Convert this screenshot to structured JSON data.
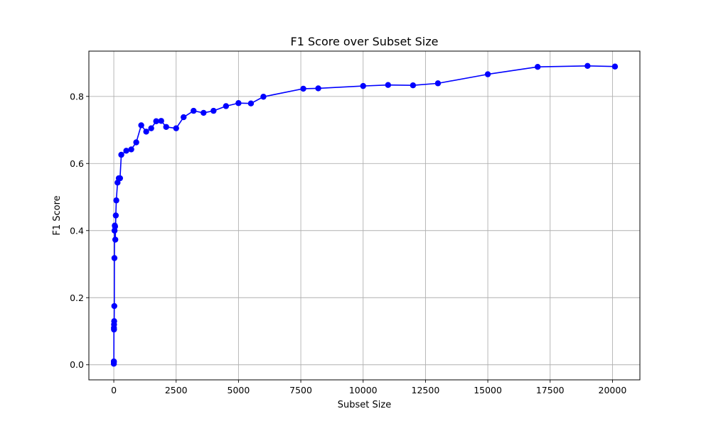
{
  "chart_data": {
    "type": "line",
    "title": "F1 Score over Subset Size",
    "xlabel": "Subset Size",
    "ylabel": "F1 Score",
    "xlim": [
      -1000,
      21100
    ],
    "ylim": [
      -0.045,
      0.935
    ],
    "xticks": [
      0,
      2500,
      5000,
      7500,
      10000,
      12500,
      15000,
      17500,
      20000
    ],
    "yticks": [
      0.0,
      0.2,
      0.4,
      0.6,
      0.8
    ],
    "xtick_labels": [
      "0",
      "2500",
      "5000",
      "7500",
      "10000",
      "12500",
      "15000",
      "17500",
      "20000"
    ],
    "ytick_labels": [
      "0.0",
      "0.2",
      "0.4",
      "0.6",
      "0.8"
    ],
    "grid": true,
    "color": "#0000ff",
    "marker": "circle",
    "series": [
      {
        "x": [
          1,
          2,
          3,
          5,
          8,
          10,
          15,
          20,
          25,
          30,
          40,
          50,
          60,
          80,
          100,
          150,
          200,
          250,
          300,
          500,
          700,
          900,
          1100,
          1300,
          1500,
          1700,
          1900,
          2100,
          2500,
          2800,
          3200,
          3600,
          4000,
          4500,
          5000,
          5500,
          6000,
          7600,
          8200,
          10000,
          11000,
          12000,
          13000,
          15000,
          17000,
          19000,
          20100
        ],
        "y": [
          0.003,
          0.01,
          0.008,
          0.11,
          0.105,
          0.12,
          0.13,
          0.175,
          0.318,
          0.4,
          0.415,
          0.412,
          0.373,
          0.445,
          0.49,
          0.543,
          0.556,
          0.556,
          0.626,
          0.638,
          0.642,
          0.663,
          0.714,
          0.695,
          0.705,
          0.726,
          0.727,
          0.709,
          0.705,
          0.738,
          0.757,
          0.751,
          0.757,
          0.771,
          0.78,
          0.779,
          0.799,
          0.823,
          0.824,
          0.831,
          0.834,
          0.833,
          0.839,
          0.866,
          0.888,
          0.891,
          0.889
        ]
      }
    ]
  }
}
